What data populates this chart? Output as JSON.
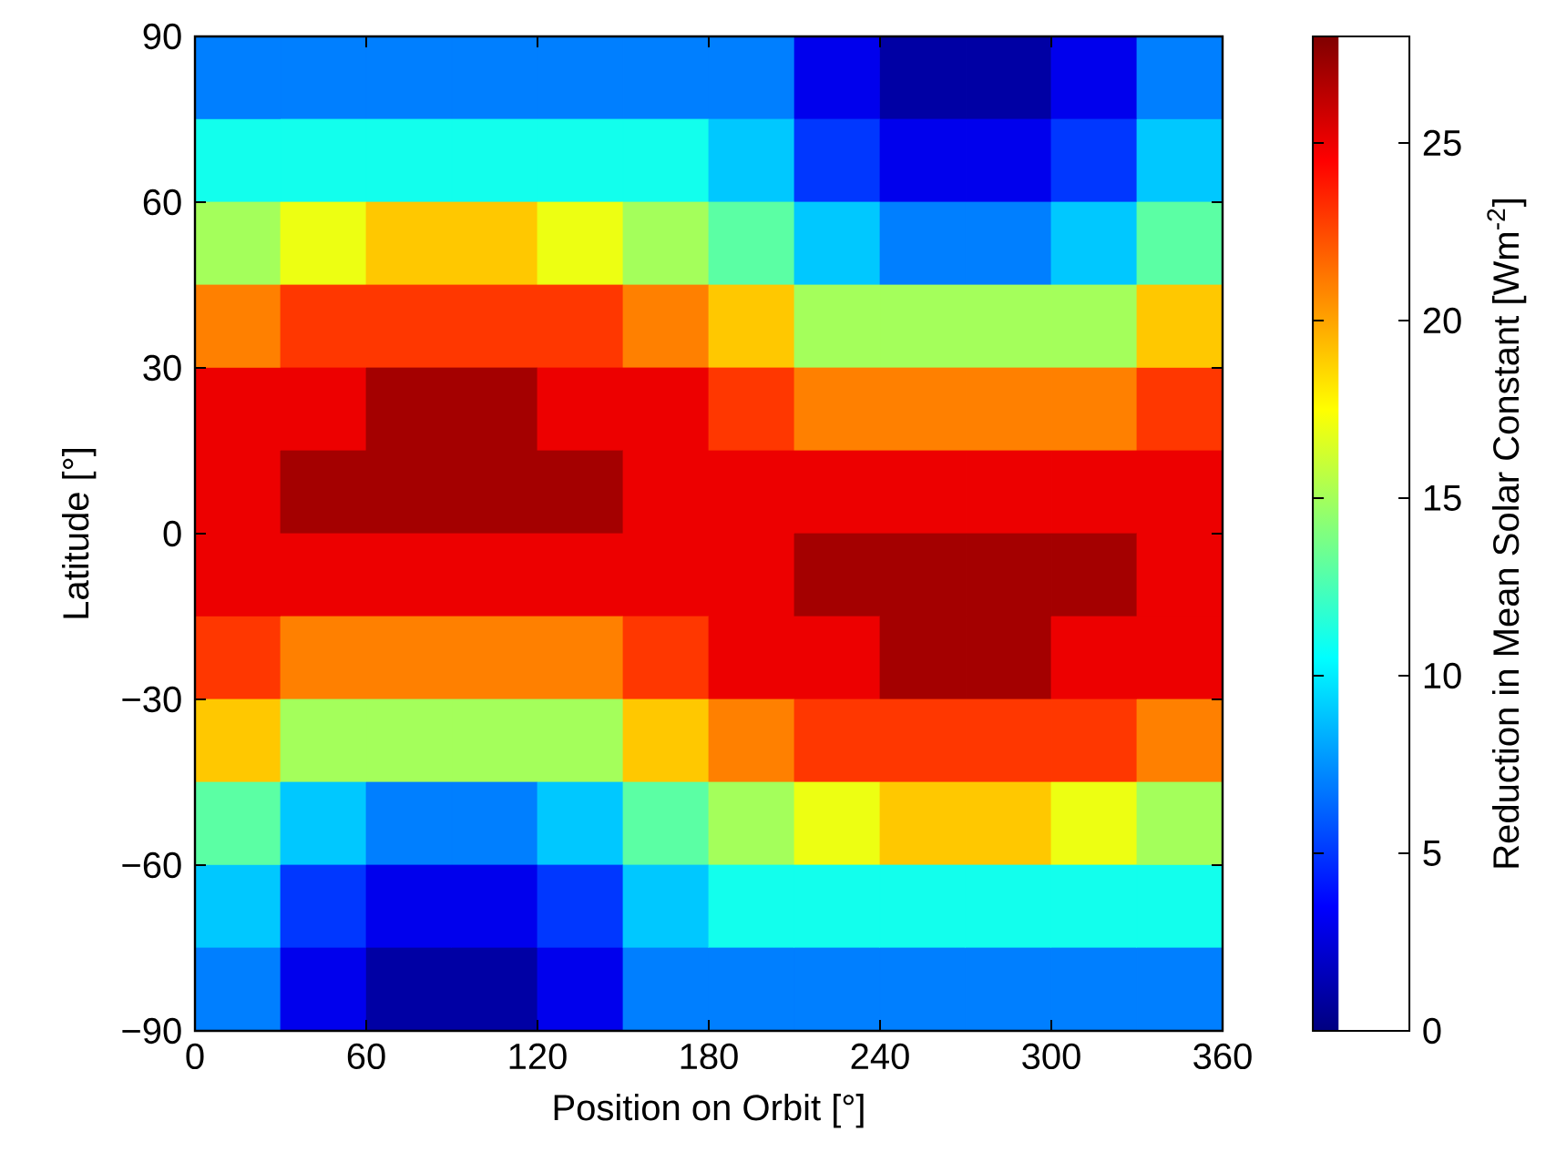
{
  "chart_data": {
    "type": "heatmap",
    "xlabel": "Position on Orbit [°]",
    "ylabel": "Latitude [°]",
    "clabel": "Reduction in Mean Solar Constant [Wm$^{-2}$]",
    "x": [
      15,
      45,
      75,
      105,
      135,
      165,
      195,
      225,
      255,
      285,
      315,
      345
    ],
    "xlim": [
      0,
      360
    ],
    "xticks": [
      0,
      60,
      120,
      180,
      240,
      300,
      360
    ],
    "ylim": [
      -90,
      90
    ],
    "yticks": [
      {
        "value": -90,
        "label": "−90"
      },
      {
        "value": -60,
        "label": "−60"
      },
      {
        "value": -30,
        "label": "−30"
      },
      0,
      30,
      60,
      90
    ],
    "clim": [
      0,
      28
    ],
    "cticks": [
      0,
      5,
      10,
      15,
      20,
      25
    ],
    "cells": [
      [
        7,
        7,
        7,
        7,
        7,
        7,
        7,
        3,
        1,
        1,
        3,
        7
      ],
      [
        11,
        11,
        11,
        11,
        11,
        11,
        9,
        5,
        3,
        3,
        5,
        9
      ],
      [
        15,
        17,
        19,
        19,
        17,
        15,
        13,
        9,
        7,
        7,
        9,
        13
      ],
      [
        21,
        23,
        23,
        23,
        23,
        21,
        19,
        15,
        15,
        15,
        15,
        19
      ],
      [
        25,
        25,
        27,
        27,
        25,
        25,
        23,
        21,
        21,
        21,
        21,
        23
      ],
      [
        25,
        27,
        27,
        27,
        27,
        25,
        25,
        25,
        25,
        25,
        25,
        25
      ],
      [
        25,
        25,
        25,
        25,
        25,
        25,
        25,
        27,
        27,
        27,
        27,
        25
      ],
      [
        23,
        21,
        21,
        21,
        21,
        23,
        25,
        25,
        27,
        27,
        25,
        25
      ],
      [
        19,
        15,
        15,
        15,
        15,
        19,
        21,
        23,
        23,
        23,
        23,
        21
      ],
      [
        13,
        9,
        7,
        7,
        9,
        13,
        15,
        17,
        19,
        19,
        17,
        15
      ],
      [
        9,
        5,
        3,
        3,
        5,
        9,
        11,
        11,
        11,
        11,
        11,
        11
      ],
      [
        7,
        3,
        1,
        1,
        3,
        7,
        7,
        7,
        7,
        7,
        7,
        7
      ]
    ]
  }
}
